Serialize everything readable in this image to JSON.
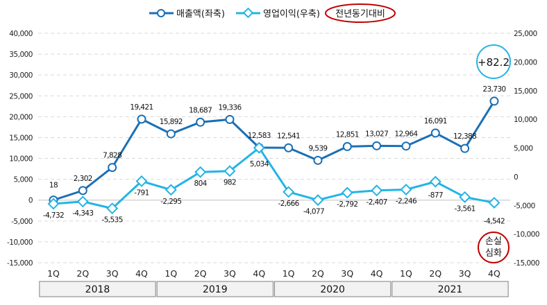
{
  "chart_data": {
    "type": "line",
    "title": "",
    "legend": {
      "position": "top",
      "entries": [
        "매출액(좌축)",
        "영업이익(우축)"
      ],
      "compare_label": "전년동기대비"
    },
    "categories": [
      "1Q",
      "2Q",
      "3Q",
      "4Q",
      "1Q",
      "2Q",
      "3Q",
      "4Q",
      "1Q",
      "2Q",
      "3Q",
      "4Q",
      "1Q",
      "2Q",
      "3Q",
      "4Q"
    ],
    "years": [
      "2018",
      "2019",
      "2020",
      "2021"
    ],
    "series": [
      {
        "name": "매출액(좌축)",
        "axis": "left",
        "color": "#1a6fb5",
        "marker": "circle",
        "values": [
          18,
          2302,
          7828,
          19421,
          15892,
          18687,
          19336,
          12583,
          12541,
          9539,
          12851,
          13027,
          12964,
          16091,
          12388,
          23730
        ]
      },
      {
        "name": "영업이익(우축)",
        "axis": "right",
        "color": "#22b4e6",
        "marker": "diamond",
        "values": [
          -4732,
          -4343,
          -5535,
          -791,
          -2295,
          804,
          982,
          5034,
          -2666,
          -4077,
          -2792,
          -2407,
          -2246,
          -877,
          -3561,
          -4542
        ]
      }
    ],
    "y_left": {
      "range": [
        -15000,
        40000
      ],
      "step": 5000,
      "ticks": [
        "40,000",
        "35,000",
        "30,000",
        "25,000",
        "20,000",
        "15,000",
        "10,000",
        "5,000",
        "0",
        "-5,000",
        "-10,000",
        "-15,000"
      ]
    },
    "y_right": {
      "range": [
        -15000,
        25000
      ],
      "step": 5000,
      "ticks": [
        "25,000",
        "20,000",
        "15,000",
        "10,000",
        "5,000",
        "0",
        "-5,000",
        "-10,000",
        "-15,000"
      ]
    },
    "grid": true,
    "annotations": [
      {
        "text": "+82.2",
        "color": "#22b4e6"
      },
      {
        "text": "손실\n심화",
        "color": "#c00000"
      }
    ]
  }
}
